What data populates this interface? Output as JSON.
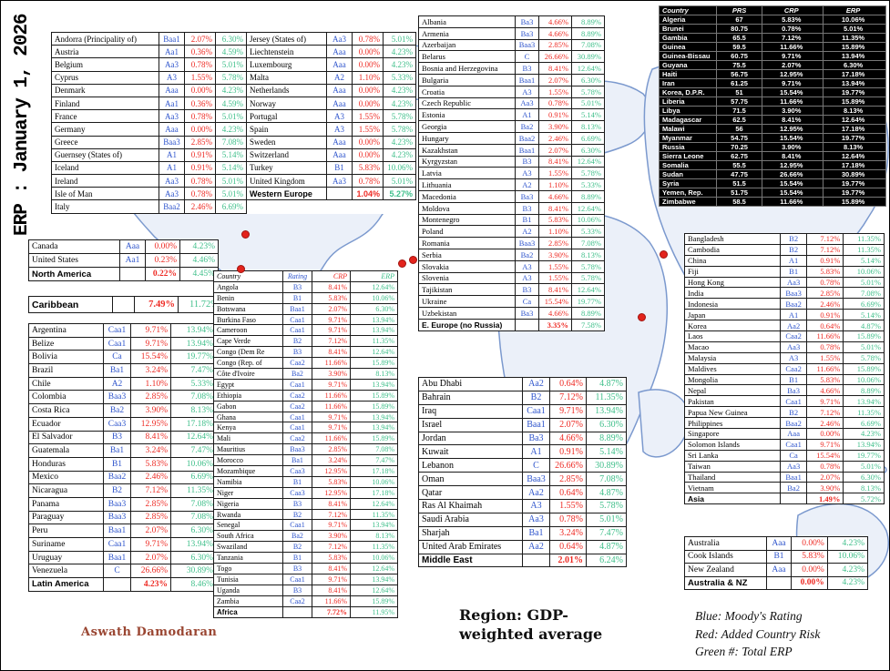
{
  "title": "ERP : January 1, 2026",
  "author": "Aswath Damodaran",
  "region_note": "Region: GDP-weighted average",
  "legend": [
    "Blue: Moody's Rating",
    "Red: Added Country Risk",
    "Green #: Total ERP"
  ],
  "colors": {
    "rating_blue": "#2f55cc",
    "added_risk_red": "#ee2b24",
    "total_erp_green": "#3fbf8a",
    "author_brown": "#9a4632",
    "frontier_table_bg": "#000000",
    "map_marker_red": "#e3231c"
  },
  "chart_data": [
    {
      "type": "table",
      "name": "western_europe",
      "rows": [
        [
          "Andorra (Principality of)",
          "Baa1",
          "2.07%",
          "6.30%",
          "Jersey (States of)",
          "Aa3",
          "0.78%",
          "5.01%"
        ],
        [
          "Austria",
          "Aa1",
          "0.36%",
          "4.59%",
          "Liechtenstein",
          "Aaa",
          "0.00%",
          "4.23%"
        ],
        [
          "Belgium",
          "Aa3",
          "0.78%",
          "5.01%",
          "Luxembourg",
          "Aaa",
          "0.00%",
          "4.23%"
        ],
        [
          "Cyprus",
          "A3",
          "1.55%",
          "5.78%",
          "Malta",
          "A2",
          "1.10%",
          "5.33%"
        ],
        [
          "Denmark",
          "Aaa",
          "0.00%",
          "4.23%",
          "Netherlands",
          "Aaa",
          "0.00%",
          "4.23%"
        ],
        [
          "Finland",
          "Aa1",
          "0.36%",
          "4.59%",
          "Norway",
          "Aaa",
          "0.00%",
          "4.23%"
        ],
        [
          "France",
          "Aa3",
          "0.78%",
          "5.01%",
          "Portugal",
          "A3",
          "1.55%",
          "5.78%"
        ],
        [
          "Germany",
          "Aaa",
          "0.00%",
          "4.23%",
          "Spain",
          "A3",
          "1.55%",
          "5.78%"
        ],
        [
          "Greece",
          "Baa3",
          "2.85%",
          "7.08%",
          "Sweden",
          "Aaa",
          "0.00%",
          "4.23%"
        ],
        [
          "Guernsey (States of)",
          "A1",
          "0.91%",
          "5.14%",
          "Switzerland",
          "Aaa",
          "0.00%",
          "4.23%"
        ],
        [
          "Iceland",
          "A1",
          "0.91%",
          "5.14%",
          "Turkey",
          "B1",
          "5.83%",
          "10.06%"
        ],
        [
          "Ireland",
          "Aa3",
          "0.78%",
          "5.01%",
          "United Kingdom",
          "Aa3",
          "0.78%",
          "5.01%"
        ],
        [
          "Isle of Man",
          "Aa3",
          "0.78%",
          "5.01%",
          "Western Europe",
          "",
          "1.04%",
          "5.27%"
        ],
        [
          "Italy",
          "Baa2",
          "2.46%",
          "6.69%",
          null,
          null,
          null,
          null
        ]
      ],
      "bold_cells": [
        [
          12,
          4
        ],
        [
          12,
          6
        ],
        [
          12,
          7
        ]
      ]
    },
    {
      "type": "table",
      "name": "north_america",
      "rows": [
        [
          "Canada",
          "Aaa",
          "0.00%",
          "4.23%"
        ],
        [
          "United States",
          "Aa1",
          "0.23%",
          "4.46%"
        ]
      ],
      "summary": [
        "North America",
        "",
        "0.22%",
        "4.45%"
      ]
    },
    {
      "type": "table",
      "name": "caribbean",
      "summary": [
        "Caribbean",
        "",
        "7.49%",
        "11.72%"
      ]
    },
    {
      "type": "table",
      "name": "latin_america",
      "rows": [
        [
          "Argentina",
          "Caa1",
          "9.71%",
          "13.94%"
        ],
        [
          "Belize",
          "Caa1",
          "9.71%",
          "13.94%"
        ],
        [
          "Bolivia",
          "Ca",
          "15.54%",
          "19.77%"
        ],
        [
          "Brazil",
          "Ba1",
          "3.24%",
          "7.47%"
        ],
        [
          "Chile",
          "A2",
          "1.10%",
          "5.33%"
        ],
        [
          "Colombia",
          "Baa3",
          "2.85%",
          "7.08%"
        ],
        [
          "Costa Rica",
          "Ba2",
          "3.90%",
          "8.13%"
        ],
        [
          "Ecuador",
          "Caa3",
          "12.95%",
          "17.18%"
        ],
        [
          "El Salvador",
          "B3",
          "8.41%",
          "12.64%"
        ],
        [
          "Guatemala",
          "Ba1",
          "3.24%",
          "7.47%"
        ],
        [
          "Honduras",
          "B1",
          "5.83%",
          "10.06%"
        ],
        [
          "Mexico",
          "Baa2",
          "2.46%",
          "6.69%"
        ],
        [
          "Nicaragua",
          "B2",
          "7.12%",
          "11.35%"
        ],
        [
          "Panama",
          "Baa3",
          "2.85%",
          "7.08%"
        ],
        [
          "Paraguay",
          "Baa3",
          "2.85%",
          "7.08%"
        ],
        [
          "Peru",
          "Baa1",
          "2.07%",
          "6.30%"
        ],
        [
          "Suriname",
          "Caa1",
          "9.71%",
          "13.94%"
        ],
        [
          "Uruguay",
          "Baa1",
          "2.07%",
          "6.30%"
        ],
        [
          "Venezuela",
          "C",
          "26.66%",
          "30.89%"
        ]
      ],
      "summary": [
        "Latin America",
        "",
        "4.23%",
        "8.46%"
      ]
    },
    {
      "type": "table",
      "name": "africa",
      "header": [
        "Country",
        "Rating",
        "CRP",
        "ERP"
      ],
      "rows": [
        [
          "Angola",
          "B3",
          "8.41%",
          "12.64%"
        ],
        [
          "Benin",
          "B1",
          "5.83%",
          "10.06%"
        ],
        [
          "Botswana",
          "Baa1",
          "2.07%",
          "6.30%"
        ],
        [
          "Burkina Faso",
          "Caa1",
          "9.71%",
          "13.94%"
        ],
        [
          "Cameroon",
          "Caa1",
          "9.71%",
          "13.94%"
        ],
        [
          "Cape Verde",
          "B2",
          "7.12%",
          "11.35%"
        ],
        [
          "Congo (Dem Re",
          "B3",
          "8.41%",
          "12.64%"
        ],
        [
          "Congo (Rep. of",
          "Caa2",
          "11.66%",
          "15.89%"
        ],
        [
          "Côte d'Ivoire",
          "Ba2",
          "3.90%",
          "8.13%"
        ],
        [
          "Egypt",
          "Caa1",
          "9.71%",
          "13.94%"
        ],
        [
          "Ethiopia",
          "Caa2",
          "11.66%",
          "15.89%"
        ],
        [
          "Gabon",
          "Caa2",
          "11.66%",
          "15.89%"
        ],
        [
          "Ghana",
          "Caa1",
          "9.71%",
          "13.94%"
        ],
        [
          "Kenya",
          "Caa1",
          "9.71%",
          "13.94%"
        ],
        [
          "Mali",
          "Caa2",
          "11.66%",
          "15.89%"
        ],
        [
          "Mauritius",
          "Baa3",
          "2.85%",
          "7.08%"
        ],
        [
          "Morocco",
          "Ba1",
          "3.24%",
          "7.47%"
        ],
        [
          "Mozambique",
          "Caa3",
          "12.95%",
          "17.18%"
        ],
        [
          "Namibia",
          "B1",
          "5.83%",
          "10.06%"
        ],
        [
          "Niger",
          "Caa3",
          "12.95%",
          "17.18%"
        ],
        [
          "Nigeria",
          "B3",
          "8.41%",
          "12.64%"
        ],
        [
          "Rwanda",
          "B2",
          "7.12%",
          "11.35%"
        ],
        [
          "Senegal",
          "Caa1",
          "9.71%",
          "13.94%"
        ],
        [
          "South Africa",
          "Ba2",
          "3.90%",
          "8.13%"
        ],
        [
          "Swaziland",
          "B2",
          "7.12%",
          "11.35%"
        ],
        [
          "Tanzania",
          "B1",
          "5.83%",
          "10.06%"
        ],
        [
          "Togo",
          "B3",
          "8.41%",
          "12.64%"
        ],
        [
          "Tunisia",
          "Caa1",
          "9.71%",
          "13.94%"
        ],
        [
          "Uganda",
          "B3",
          "8.41%",
          "12.64%"
        ],
        [
          "Zambia",
          "Caa2",
          "11.66%",
          "15.89%"
        ]
      ],
      "summary": [
        "Africa",
        "",
        "7.72%",
        "11.95%"
      ]
    },
    {
      "type": "table",
      "name": "e_europe",
      "rows": [
        [
          "Albania",
          "Ba3",
          "4.66%",
          "8.89%"
        ],
        [
          "Armenia",
          "Ba3",
          "4.66%",
          "8.89%"
        ],
        [
          "Azerbaijan",
          "Baa3",
          "2.85%",
          "7.08%"
        ],
        [
          "Belarus",
          "C",
          "26.66%",
          "30.89%"
        ],
        [
          "Bosnia and Herzegovina",
          "B3",
          "8.41%",
          "12.64%"
        ],
        [
          "Bulgaria",
          "Baa1",
          "2.07%",
          "6.30%"
        ],
        [
          "Croatia",
          "A3",
          "1.55%",
          "5.78%"
        ],
        [
          "Czech Republic",
          "Aa3",
          "0.78%",
          "5.01%"
        ],
        [
          "Estonia",
          "A1",
          "0.91%",
          "5.14%"
        ],
        [
          "Georgia",
          "Ba2",
          "3.90%",
          "8.13%"
        ],
        [
          "Hungary",
          "Baa2",
          "2.46%",
          "6.69%"
        ],
        [
          "Kazakhstan",
          "Baa1",
          "2.07%",
          "6.30%"
        ],
        [
          "Kyrgyzstan",
          "B3",
          "8.41%",
          "12.64%"
        ],
        [
          "Latvia",
          "A3",
          "1.55%",
          "5.78%"
        ],
        [
          "Lithuania",
          "A2",
          "1.10%",
          "5.33%"
        ],
        [
          "Macedonia",
          "Ba3",
          "4.66%",
          "8.89%"
        ],
        [
          "Moldova",
          "B3",
          "8.41%",
          "12.64%"
        ],
        [
          "Montenegro",
          "B1",
          "5.83%",
          "10.06%"
        ],
        [
          "Poland",
          "A2",
          "1.10%",
          "5.33%"
        ],
        [
          "Romania",
          "Baa3",
          "2.85%",
          "7.08%"
        ],
        [
          "Serbia",
          "Ba2",
          "3.90%",
          "8.13%"
        ],
        [
          "Slovakia",
          "A3",
          "1.55%",
          "5.78%"
        ],
        [
          "Slovenia",
          "A3",
          "1.55%",
          "5.78%"
        ],
        [
          "Tajikistan",
          "B3",
          "8.41%",
          "12.64%"
        ],
        [
          "Ukraine",
          "Ca",
          "15.54%",
          "19.77%"
        ],
        [
          "Uzbekistan",
          "Ba3",
          "4.66%",
          "8.89%"
        ]
      ],
      "summary": [
        "E. Europe (no Russia)",
        "",
        "3.35%",
        "7.58%"
      ]
    },
    {
      "type": "table",
      "name": "middle_east",
      "rows": [
        [
          "Abu Dhabi",
          "Aa2",
          "0.64%",
          "4.87%"
        ],
        [
          "Bahrain",
          "B2",
          "7.12%",
          "11.35%"
        ],
        [
          "Iraq",
          "Caa1",
          "9.71%",
          "13.94%"
        ],
        [
          "Israel",
          "Baa1",
          "2.07%",
          "6.30%"
        ],
        [
          "Jordan",
          "Ba3",
          "4.66%",
          "8.89%"
        ],
        [
          "Kuwait",
          "A1",
          "0.91%",
          "5.14%"
        ],
        [
          "Lebanon",
          "C",
          "26.66%",
          "30.89%"
        ],
        [
          "Oman",
          "Baa3",
          "2.85%",
          "7.08%"
        ],
        [
          "Qatar",
          "Aa2",
          "0.64%",
          "4.87%"
        ],
        [
          "Ras Al Khaimah",
          "A3",
          "1.55%",
          "5.78%"
        ],
        [
          "Saudi Arabia",
          "Aa3",
          "0.78%",
          "5.01%"
        ],
        [
          "Sharjah",
          "Ba1",
          "3.24%",
          "7.47%"
        ],
        [
          "United Arab Emirates",
          "Aa2",
          "0.64%",
          "4.87%"
        ]
      ],
      "summary": [
        "Middle East",
        "",
        "2.01%",
        "6.24%"
      ]
    },
    {
      "type": "table",
      "name": "frontier_prs",
      "header": [
        "Country",
        "PRS",
        "CRP",
        "ERP"
      ],
      "rows": [
        [
          "Algeria",
          "67",
          "5.83%",
          "10.06%"
        ],
        [
          "Brunei",
          "80.75",
          "0.78%",
          "5.01%"
        ],
        [
          "Gambia",
          "65.5",
          "7.12%",
          "11.35%"
        ],
        [
          "Guinea",
          "59.5",
          "11.66%",
          "15.89%"
        ],
        [
          "Guinea-Bissau",
          "60.75",
          "9.71%",
          "13.94%"
        ],
        [
          "Guyana",
          "75.5",
          "2.07%",
          "6.30%"
        ],
        [
          "Haiti",
          "56.75",
          "12.95%",
          "17.18%"
        ],
        [
          "Iran",
          "61.25",
          "9.71%",
          "13.94%"
        ],
        [
          "Korea, D.P.R.",
          "51",
          "15.54%",
          "19.77%"
        ],
        [
          "Liberia",
          "57.75",
          "11.66%",
          "15.89%"
        ],
        [
          "Libya",
          "71.5",
          "3.90%",
          "8.13%"
        ],
        [
          "Madagascar",
          "62.5",
          "8.41%",
          "12.64%"
        ],
        [
          "Malawi",
          "56",
          "12.95%",
          "17.18%"
        ],
        [
          "Myanmar",
          "54.75",
          "15.54%",
          "19.77%"
        ],
        [
          "Russia",
          "70.25",
          "3.90%",
          "8.13%"
        ],
        [
          "Sierra Leone",
          "62.75",
          "8.41%",
          "12.64%"
        ],
        [
          "Somalia",
          "55.5",
          "12.95%",
          "17.18%"
        ],
        [
          "Sudan",
          "47.75",
          "26.66%",
          "30.89%"
        ],
        [
          "Syria",
          "51.5",
          "15.54%",
          "19.77%"
        ],
        [
          "Yemen, Rep.",
          "51.75",
          "15.54%",
          "19.77%"
        ],
        [
          "Zimbabwe",
          "58.5",
          "11.66%",
          "15.89%"
        ]
      ]
    },
    {
      "type": "table",
      "name": "asia",
      "rows": [
        [
          "Bangladesh",
          "B2",
          "7.12%",
          "11.35%"
        ],
        [
          "Cambodia",
          "B2",
          "7.12%",
          "11.35%"
        ],
        [
          "China",
          "A1",
          "0.91%",
          "5.14%"
        ],
        [
          "Fiji",
          "B1",
          "5.83%",
          "10.06%"
        ],
        [
          "Hong Kong",
          "Aa3",
          "0.78%",
          "5.01%"
        ],
        [
          "India",
          "Baa3",
          "2.85%",
          "7.08%"
        ],
        [
          "Indonesia",
          "Baa2",
          "2.46%",
          "6.69%"
        ],
        [
          "Japan",
          "A1",
          "0.91%",
          "5.14%"
        ],
        [
          "Korea",
          "Aa2",
          "0.64%",
          "4.87%"
        ],
        [
          "Laos",
          "Caa2",
          "11.66%",
          "15.89%"
        ],
        [
          "Macao",
          "Aa3",
          "0.78%",
          "5.01%"
        ],
        [
          "Malaysia",
          "A3",
          "1.55%",
          "5.78%"
        ],
        [
          "Maldives",
          "Caa2",
          "11.66%",
          "15.89%"
        ],
        [
          "Mongolia",
          "B1",
          "5.83%",
          "10.06%"
        ],
        [
          "Nepal",
          "Ba3",
          "4.66%",
          "8.89%"
        ],
        [
          "Pakistan",
          "Caa1",
          "9.71%",
          "13.94%"
        ],
        [
          "Papua New Guinea",
          "B2",
          "7.12%",
          "11.35%"
        ],
        [
          "Philippines",
          "Baa2",
          "2.46%",
          "6.69%"
        ],
        [
          "Singapore",
          "Aaa",
          "0.00%",
          "4.23%"
        ],
        [
          "Solomon Islands",
          "Caa1",
          "9.71%",
          "13.94%"
        ],
        [
          "Sri Lanka",
          "Ca",
          "15.54%",
          "19.77%"
        ],
        [
          "Taiwan",
          "Aa3",
          "0.78%",
          "5.01%"
        ],
        [
          "Thailand",
          "Baa1",
          "2.07%",
          "6.30%"
        ],
        [
          "Vietnam",
          "Ba2",
          "3.90%",
          "8.13%"
        ]
      ],
      "summary": [
        "Asia",
        "",
        "1.49%",
        "5.72%"
      ]
    },
    {
      "type": "table",
      "name": "australia_nz",
      "rows": [
        [
          "Australia",
          "Aaa",
          "0.00%",
          "4.23%"
        ],
        [
          "Cook Islands",
          "B1",
          "5.83%",
          "10.06%"
        ],
        [
          "New Zealand",
          "Aaa",
          "0.00%",
          "4.23%"
        ]
      ],
      "summary": [
        "Australia & NZ",
        "",
        "0.00%",
        "4.23%"
      ]
    }
  ]
}
